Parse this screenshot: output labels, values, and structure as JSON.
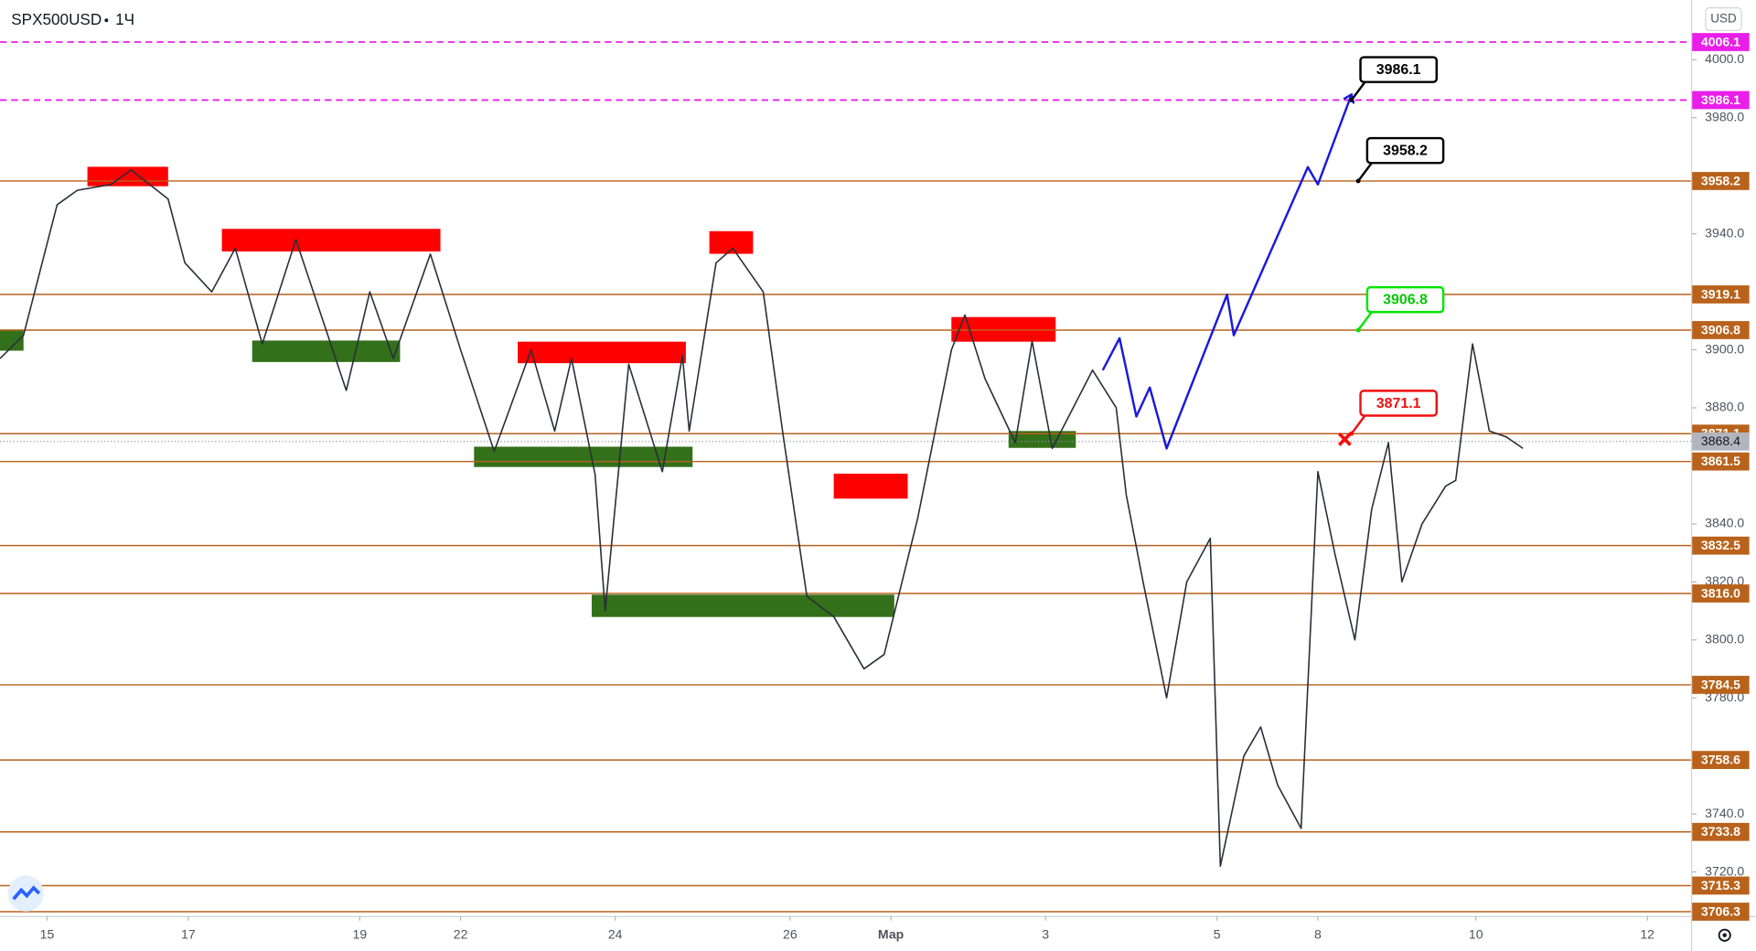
{
  "chart_data": {
    "type": "line",
    "symbol": "SPX500USD",
    "interval": "1Ч",
    "currency": "USD",
    "xlim": [
      0,
      503
    ],
    "ylim": [
      3704.8,
      4020.6
    ],
    "xticks": [
      {
        "value": 14,
        "label": "15"
      },
      {
        "value": 56,
        "label": "17"
      },
      {
        "value": 107,
        "label": "19"
      },
      {
        "value": 137,
        "label": "22"
      },
      {
        "value": 183,
        "label": "24"
      },
      {
        "value": 235,
        "label": "26"
      },
      {
        "value": 265,
        "label": "Мар"
      },
      {
        "value": 311,
        "label": "3"
      },
      {
        "value": 362,
        "label": "5"
      },
      {
        "value": 392,
        "label": "8"
      },
      {
        "value": 439,
        "label": "10"
      },
      {
        "value": 490,
        "label": "12"
      }
    ],
    "yticks": [
      {
        "value": 4000,
        "label": "4000.0"
      },
      {
        "value": 3980,
        "label": "3980.0"
      },
      {
        "value": 3940,
        "label": "3940.0"
      },
      {
        "value": 3900,
        "label": "3900.0"
      },
      {
        "value": 3880,
        "label": "3880.0"
      },
      {
        "value": 3840,
        "label": "3840.0"
      },
      {
        "value": 3820,
        "label": "3820.0"
      },
      {
        "value": 3800,
        "label": "3800.0"
      },
      {
        "value": 3780,
        "label": "3780.0"
      },
      {
        "value": 3740,
        "label": "3740.0"
      },
      {
        "value": 3720,
        "label": "3720.0"
      }
    ],
    "series": [
      {
        "color": "#2a2e39",
        "x": [
          0,
          7,
          17,
          23,
          33,
          39,
          50,
          55,
          63,
          70,
          78,
          88,
          103,
          110,
          117,
          128,
          137,
          147,
          158,
          165,
          170,
          177,
          180,
          187,
          197,
          203,
          205,
          213,
          218,
          227,
          233,
          240,
          248,
          257,
          263,
          273,
          283,
          287,
          293,
          302,
          307,
          313,
          325,
          332,
          335,
          340,
          347,
          353,
          360,
          363,
          370,
          375,
          380,
          387,
          392,
          397,
          403,
          408,
          413,
          417,
          423,
          430,
          433,
          438,
          443,
          448,
          453
        ],
        "values": [
          3897,
          3905,
          3950,
          3955,
          3957,
          3962,
          3952,
          3930,
          3920,
          3935,
          3902,
          3938,
          3886,
          3920,
          3897,
          3933,
          3900,
          3865,
          3900,
          3872,
          3897,
          3857,
          3810,
          3895,
          3858,
          3898,
          3872,
          3930,
          3935,
          3920,
          3870,
          3815,
          3808,
          3790,
          3795,
          3842,
          3900,
          3912,
          3890,
          3868,
          3903,
          3866,
          3893,
          3880,
          3850,
          3820,
          3780,
          3820,
          3835,
          3722,
          3760,
          3770,
          3750,
          3735,
          3858,
          3830,
          3800,
          3845,
          3868,
          3820,
          3840,
          3853,
          3855,
          3902,
          3872,
          3870,
          3866
        ]
      },
      {
        "color": "#1a1adb",
        "x": [
          328,
          333,
          338,
          342,
          347,
          365,
          367,
          389,
          392,
          402
        ],
        "values": [
          3893,
          3904,
          3877,
          3887,
          3866,
          3919,
          3905,
          3963,
          3957,
          3988
        ]
      }
    ],
    "dashed_levels": {
      "color": "#e91ee9",
      "values": [
        4006.1,
        3986.1
      ]
    },
    "levels": {
      "color": "#b8621b",
      "values": [
        3958.2,
        3919.1,
        3906.8,
        3871.1,
        3861.5,
        3832.5,
        {
          "value": 3816.0,
          "label": "3816.0"
        },
        3784.5,
        3758.6,
        3733.8,
        3715.3,
        3706.3
      ]
    },
    "last_price": 3868.4,
    "zones": [
      {
        "color": "#ff0000",
        "x0": 26,
        "x1": 50,
        "low": 3956.4,
        "high": 3963.1
      },
      {
        "color": "#ff0000",
        "x0": 66,
        "x1": 131,
        "low": 3933.9,
        "high": 3941.7
      },
      {
        "color": "#ff0000",
        "x0": 211,
        "x1": 224,
        "low": 3933.1,
        "high": 3940.9
      },
      {
        "color": "#ff0000",
        "x0": 154,
        "x1": 204,
        "low": 3895.4,
        "high": 3902.8
      },
      {
        "color": "#ff0000",
        "x0": 283,
        "x1": 314,
        "low": 3902.8,
        "high": 3911.3
      },
      {
        "color": "#ff0000",
        "x0": 248,
        "x1": 270,
        "low": 3848.7,
        "high": 3857.3
      },
      {
        "color": "#33701a",
        "x0": 0,
        "x1": 7,
        "low": 3899.7,
        "high": 3907.0
      },
      {
        "color": "#33701a",
        "x0": 75,
        "x1": 119,
        "low": 3895.8,
        "high": 3903.2
      },
      {
        "color": "#33701a",
        "x0": 141,
        "x1": 206,
        "low": 3859.6,
        "high": 3866.6
      },
      {
        "color": "#33701a",
        "x0": 176,
        "x1": 266,
        "low": 3807.9,
        "high": 3815.6
      },
      {
        "color": "#33701a",
        "x0": 300,
        "x1": 320,
        "low": 3866.2,
        "high": 3872.0
      }
    ],
    "callouts": [
      {
        "value": 3986.1,
        "x": 402,
        "color": "#000000"
      },
      {
        "value": 3958.2,
        "x": 404,
        "color": "#000000"
      },
      {
        "value": 3906.8,
        "x": 404,
        "color": "#00e600"
      },
      {
        "value": 3871.1,
        "x": 402,
        "color": "#f01010"
      }
    ]
  }
}
